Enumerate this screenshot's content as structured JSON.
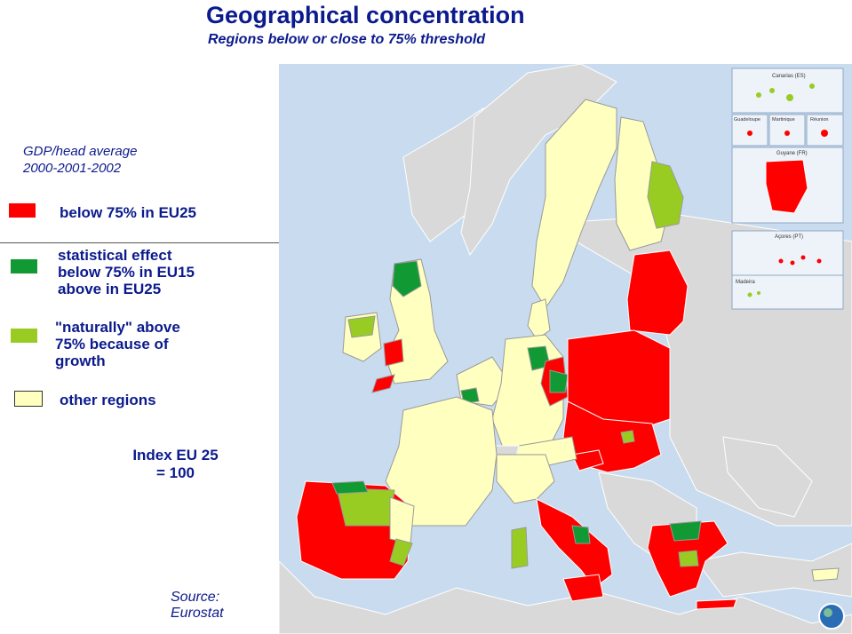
{
  "title": "Geographical concentration",
  "subtitle": "Regions below or close to 75% threshold",
  "gdp": {
    "line1": "GDP/head average",
    "line2": "2000-2001-2002"
  },
  "legend": [
    {
      "lines": [
        "below 75% in EU25"
      ],
      "color": "#ff0000"
    },
    {
      "lines": [
        "statistical  effect",
        "below 75% in EU15",
        "above in EU25"
      ],
      "color": "#119933"
    },
    {
      "lines": [
        "\"naturally\" above",
        "75% because of",
        "growth"
      ],
      "color": "#99cc22"
    },
    {
      "lines": [
        "other regions"
      ],
      "color": "#ffffc0"
    }
  ],
  "index": {
    "line1": "Index EU 25",
    "line2": "= 100"
  },
  "source": {
    "line1": "Source:",
    "line2": "Eurostat"
  },
  "insets": {
    "canarias": "Canarias (ES)",
    "guadeloupe": "Guadeloupe",
    "martinique": "Martinique",
    "reunion": "Réunion",
    "guyane": "Guyane (FR)",
    "acores": "Açores (PT)",
    "madeira": "Madeira"
  }
}
